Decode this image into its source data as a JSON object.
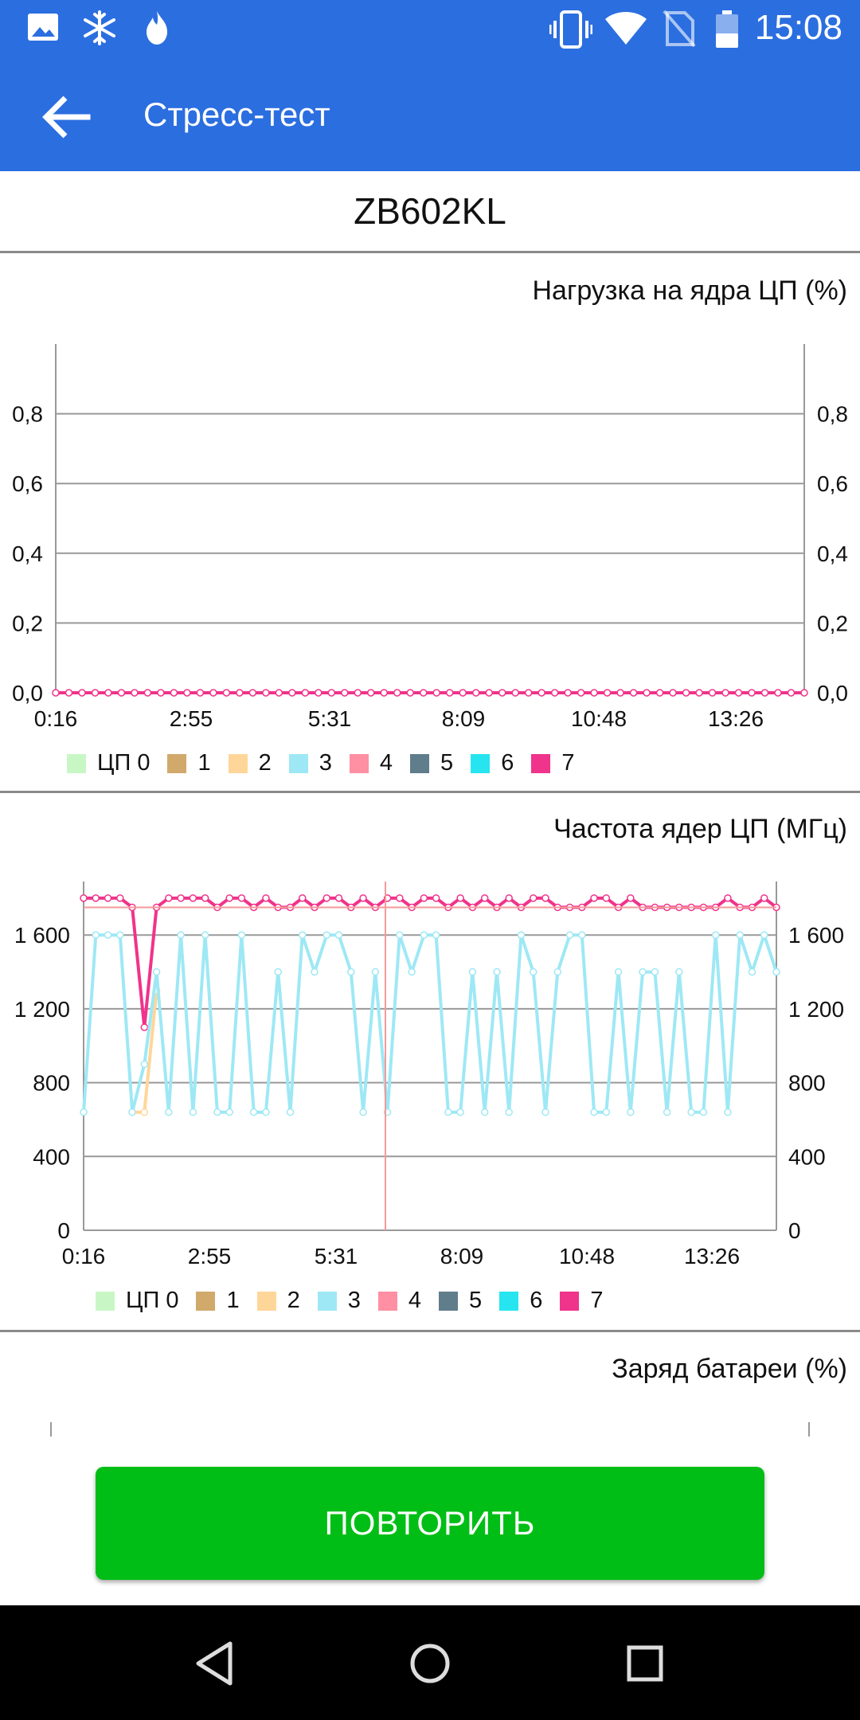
{
  "status_bar": {
    "time": "15:08",
    "icons": [
      "image-icon",
      "snowflake-icon",
      "flame-icon",
      "vibrate-icon",
      "wifi-icon",
      "no-sim-icon",
      "battery-icon"
    ]
  },
  "app_bar": {
    "title": "Стресс-тест",
    "back_icon": "arrow-back-icon"
  },
  "device_name": "ZB602KL",
  "cpu_load_chart": {
    "title": "Нагрузка на ядра ЦП (%)",
    "y_ticks": [
      "0,0",
      "0,2",
      "0,4",
      "0,6",
      "0,8"
    ],
    "x_ticks": [
      "0:16",
      "2:55",
      "5:31",
      "8:09",
      "10:48",
      "13:26"
    ]
  },
  "cpu_freq_chart": {
    "title": "Частота ядер ЦП (МГц)",
    "y_ticks": [
      "0",
      "400",
      "800",
      "1 200",
      "1 600"
    ],
    "x_ticks": [
      "0:16",
      "2:55",
      "5:31",
      "8:09",
      "10:48",
      "13:26"
    ]
  },
  "battery_chart": {
    "title": "Заряд батареи (%)"
  },
  "legend": [
    {
      "label": "ЦП 0",
      "color": "#c8f7c5"
    },
    {
      "label": "1",
      "color": "#d1a96b"
    },
    {
      "label": "2",
      "color": "#ffd699"
    },
    {
      "label": "3",
      "color": "#9ee8f5"
    },
    {
      "label": "4",
      "color": "#ff8fa3"
    },
    {
      "label": "5",
      "color": "#607d8b"
    },
    {
      "label": "6",
      "color": "#26e5f0"
    },
    {
      "label": "7",
      "color": "#f0338b"
    }
  ],
  "chart_data": [
    {
      "type": "line",
      "title": "Нагрузка на ядра ЦП (%)",
      "ylim": [
        0,
        1.0
      ],
      "x_ticks": [
        "0:16",
        "2:55",
        "5:31",
        "8:09",
        "10:48",
        "13:26"
      ],
      "series": [
        {
          "name": "7",
          "color": "#f0338b",
          "values": [
            0,
            0,
            0,
            0,
            0,
            0,
            0,
            0,
            0,
            0,
            0,
            0,
            0,
            0,
            0,
            0,
            0,
            0,
            0,
            0,
            0,
            0,
            0,
            0,
            0,
            0,
            0,
            0,
            0,
            0,
            0,
            0,
            0,
            0,
            0,
            0,
            0,
            0,
            0,
            0,
            0,
            0,
            0,
            0,
            0,
            0,
            0,
            0,
            0,
            0,
            0,
            0,
            0,
            0,
            0,
            0,
            0,
            0
          ]
        }
      ]
    },
    {
      "type": "line",
      "title": "Частота ядер ЦП (МГц)",
      "ylim": [
        0,
        1900
      ],
      "x_ticks": [
        "0:16",
        "2:55",
        "5:31",
        "8:09",
        "10:48",
        "13:26"
      ],
      "series": [
        {
          "name": "7",
          "color": "#f0338b",
          "values": [
            1800,
            1800,
            1800,
            1800,
            1750,
            1100,
            1750,
            1800,
            1800,
            1800,
            1800,
            1750,
            1800,
            1800,
            1750,
            1800,
            1750,
            1750,
            1800,
            1750,
            1800,
            1800,
            1750,
            1800,
            1750,
            1800,
            1800,
            1750,
            1800,
            1800,
            1750,
            1800,
            1750,
            1800,
            1750,
            1800,
            1750,
            1800,
            1800,
            1750,
            1750,
            1750,
            1800,
            1800,
            1750,
            1800,
            1750,
            1750,
            1750,
            1750,
            1750,
            1750,
            1750,
            1800,
            1750,
            1750,
            1800,
            1750
          ]
        },
        {
          "name": "2",
          "color": "#ffd699",
          "values": [
            null,
            null,
            null,
            null,
            640,
            640,
            1300
          ]
        },
        {
          "name": "3",
          "color": "#9ee8f5",
          "values": [
            640,
            1600,
            1600,
            1600,
            640,
            900,
            1400,
            640,
            1600,
            640,
            1600,
            640,
            640,
            1600,
            640,
            640,
            1400,
            640,
            1600,
            1400,
            1600,
            1600,
            1400,
            640,
            1400,
            640,
            1600,
            1400,
            1600,
            1600,
            640,
            640,
            1400,
            640,
            1400,
            640,
            1600,
            1400,
            640,
            1400,
            1600,
            1600,
            640,
            640,
            1400,
            640,
            1400,
            1400,
            640,
            1400,
            640,
            640,
            1600,
            640,
            1600,
            1400,
            1600,
            1400
          ]
        }
      ]
    },
    {
      "type": "line",
      "title": "Заряд батареи (%)",
      "series": []
    }
  ],
  "retry_button": {
    "label": "ПОВТОРИТЬ"
  },
  "nav_bar": {
    "icons": [
      "back-triangle-icon",
      "home-circle-icon",
      "recents-square-icon"
    ]
  }
}
